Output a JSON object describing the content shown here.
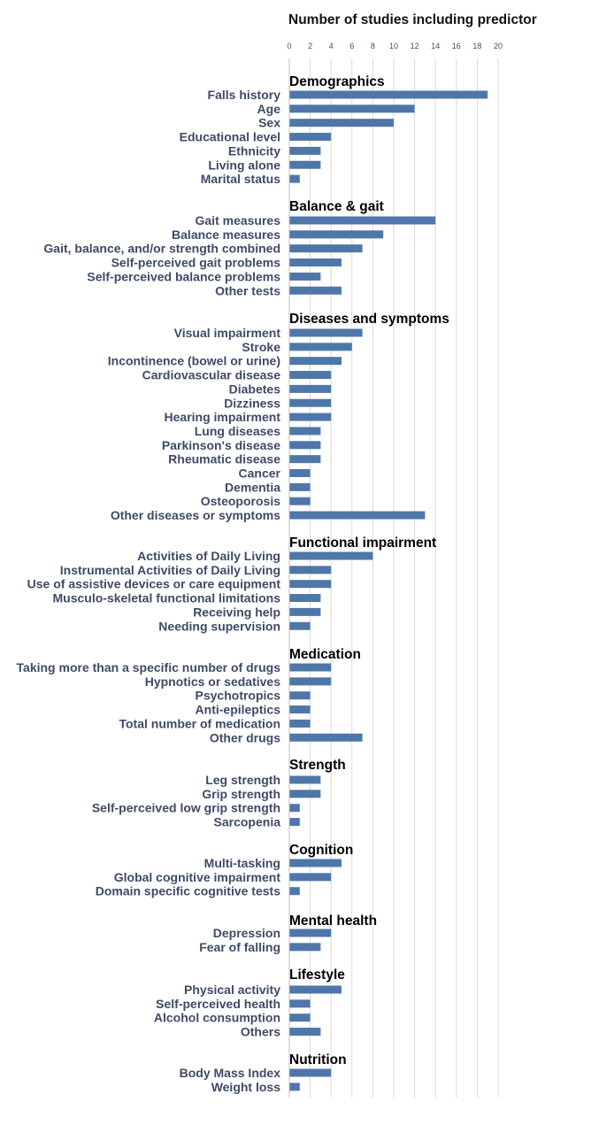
{
  "chart_data": {
    "type": "bar",
    "orientation": "horizontal",
    "title": "Number of studies including predictor",
    "xlim": [
      0,
      20
    ],
    "ticks": [
      0,
      2,
      4,
      6,
      8,
      10,
      12,
      14,
      16,
      18,
      20
    ],
    "grid": true,
    "bar_color": "#4f76a8",
    "groups": [
      {
        "name": "Demographics",
        "items": [
          {
            "label": "Falls history",
            "value": 19
          },
          {
            "label": "Age",
            "value": 12
          },
          {
            "label": "Sex",
            "value": 10
          },
          {
            "label": "Educational level",
            "value": 4
          },
          {
            "label": "Ethnicity",
            "value": 3
          },
          {
            "label": "Living alone",
            "value": 3
          },
          {
            "label": "Marital status",
            "value": 1
          }
        ]
      },
      {
        "name": "Balance & gait",
        "items": [
          {
            "label": "Gait measures",
            "value": 14
          },
          {
            "label": "Balance measures",
            "value": 9
          },
          {
            "label": "Gait, balance, and/or strength combined",
            "value": 7
          },
          {
            "label": "Self-perceived gait problems",
            "value": 5
          },
          {
            "label": "Self-perceived balance problems",
            "value": 3
          },
          {
            "label": "Other tests",
            "value": 5
          }
        ]
      },
      {
        "name": "Diseases and symptoms",
        "items": [
          {
            "label": "Visual impairment",
            "value": 7
          },
          {
            "label": "Stroke",
            "value": 6
          },
          {
            "label": "Incontinence (bowel or urine)",
            "value": 5
          },
          {
            "label": "Cardiovascular disease",
            "value": 4
          },
          {
            "label": "Diabetes",
            "value": 4
          },
          {
            "label": "Dizziness",
            "value": 4
          },
          {
            "label": "Hearing impairment",
            "value": 4
          },
          {
            "label": "Lung diseases",
            "value": 3
          },
          {
            "label": "Parkinson's disease",
            "value": 3
          },
          {
            "label": "Rheumatic disease",
            "value": 3
          },
          {
            "label": "Cancer",
            "value": 2
          },
          {
            "label": "Dementia",
            "value": 2
          },
          {
            "label": "Osteoporosis",
            "value": 2
          },
          {
            "label": "Other diseases or symptoms",
            "value": 13
          }
        ]
      },
      {
        "name": "Functional impairment",
        "items": [
          {
            "label": "Activities of Daily Living",
            "value": 8
          },
          {
            "label": "Instrumental Activities of Daily Living",
            "value": 4
          },
          {
            "label": "Use of assistive devices or care equipment",
            "value": 4
          },
          {
            "label": "Musculo-skeletal functional limitations",
            "value": 3
          },
          {
            "label": "Receiving help",
            "value": 3
          },
          {
            "label": "Needing supervision",
            "value": 2
          }
        ]
      },
      {
        "name": "Medication",
        "items": [
          {
            "label": "Taking more than a specific number of drugs",
            "value": 4
          },
          {
            "label": "Hypnotics or sedatives",
            "value": 4
          },
          {
            "label": "Psychotropics",
            "value": 2
          },
          {
            "label": "Anti-epileptics",
            "value": 2
          },
          {
            "label": "Total number of medication",
            "value": 2
          },
          {
            "label": "Other drugs",
            "value": 7
          }
        ]
      },
      {
        "name": "Strength",
        "items": [
          {
            "label": "Leg strength",
            "value": 3
          },
          {
            "label": "Grip strength",
            "value": 3
          },
          {
            "label": "Self-perceived low grip strength",
            "value": 1
          },
          {
            "label": "Sarcopenia",
            "value": 1
          }
        ]
      },
      {
        "name": "Cognition",
        "items": [
          {
            "label": "Multi-tasking",
            "value": 5
          },
          {
            "label": "Global cognitive impairment",
            "value": 4
          },
          {
            "label": "Domain specific cognitive tests",
            "value": 1
          }
        ]
      },
      {
        "name": "Mental health",
        "items": [
          {
            "label": "Depression",
            "value": 4
          },
          {
            "label": "Fear of falling",
            "value": 3
          }
        ]
      },
      {
        "name": "Lifestyle",
        "items": [
          {
            "label": "Physical activity",
            "value": 5
          },
          {
            "label": "Self-perceived health",
            "value": 2
          },
          {
            "label": "Alcohol consumption",
            "value": 2
          },
          {
            "label": "Others",
            "value": 3
          }
        ]
      },
      {
        "name": "Nutrition",
        "items": [
          {
            "label": "Body Mass Index",
            "value": 4
          },
          {
            "label": "Weight loss",
            "value": 1
          }
        ]
      }
    ]
  }
}
